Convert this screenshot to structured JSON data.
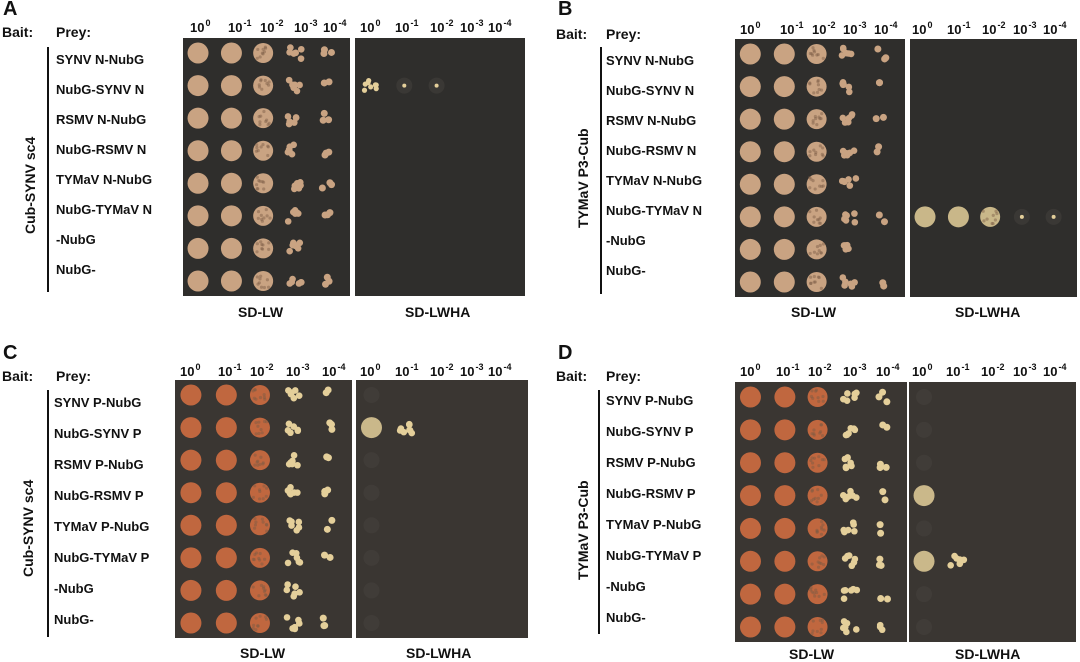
{
  "panels": [
    {
      "letter": "A",
      "bait_label": "Bait:",
      "prey_label": "Prey:",
      "bait": "Cub-SYNV sc4",
      "prey": [
        "SYNV N-NubG",
        "NubG-SYNV N",
        "RSMV N-NubG",
        "NubG-RSMV N",
        "TYMaV N-NubG",
        "NubG-TYMaV N",
        "-NubG",
        "NubG-"
      ],
      "dilutions": [
        {
          "base": "10",
          "exp": "0"
        },
        {
          "base": "10",
          "exp": "-1"
        },
        {
          "base": "10",
          "exp": "-2"
        },
        {
          "base": "10",
          "exp": "-3"
        },
        {
          "base": "10",
          "exp": "-4"
        }
      ],
      "media": [
        "SD-LW",
        "SD-LWHA"
      ]
    },
    {
      "letter": "B",
      "bait_label": "Bait:",
      "prey_label": "Prey:",
      "bait": "TYMaV P3-Cub",
      "prey": [
        "SYNV N-NubG",
        "NubG-SYNV N",
        "RSMV N-NubG",
        "NubG-RSMV N",
        "TYMaV N-NubG",
        "NubG-TYMaV N",
        "-NubG",
        "NubG-"
      ],
      "dilutions": [
        {
          "base": "10",
          "exp": "0"
        },
        {
          "base": "10",
          "exp": "-1"
        },
        {
          "base": "10",
          "exp": "-2"
        },
        {
          "base": "10",
          "exp": "-3"
        },
        {
          "base": "10",
          "exp": "-4"
        }
      ],
      "media": [
        "SD-LW",
        "SD-LWHA"
      ]
    },
    {
      "letter": "C",
      "bait_label": "Bait:",
      "prey_label": "Prey:",
      "bait": "Cub-SYNV sc4",
      "prey": [
        "SYNV P-NubG",
        "NubG-SYNV P",
        "RSMV P-NubG",
        "NubG-RSMV P",
        "TYMaV P-NubG",
        "NubG-TYMaV P",
        "-NubG",
        "NubG-"
      ],
      "dilutions": [
        {
          "base": "10",
          "exp": "0"
        },
        {
          "base": "10",
          "exp": "-1"
        },
        {
          "base": "10",
          "exp": "-2"
        },
        {
          "base": "10",
          "exp": "-3"
        },
        {
          "base": "10",
          "exp": "-4"
        }
      ],
      "media": [
        "SD-LW",
        "SD-LWHA"
      ]
    },
    {
      "letter": "D",
      "bait_label": "Bait:",
      "prey_label": "Prey:",
      "bait": "TYMaV P3-Cub",
      "prey": [
        "SYNV P-NubG",
        "NubG-SYNV P",
        "RSMV P-NubG",
        "NubG-RSMV P",
        "TYMaV P-NubG",
        "NubG-TYMaV P",
        "-NubG",
        "NubG-"
      ],
      "dilutions": [
        {
          "base": "10",
          "exp": "0"
        },
        {
          "base": "10",
          "exp": "-1"
        },
        {
          "base": "10",
          "exp": "-2"
        },
        {
          "base": "10",
          "exp": "-3"
        },
        {
          "base": "10",
          "exp": "-4"
        }
      ],
      "media": [
        "SD-LW",
        "SD-LWHA"
      ]
    }
  ],
  "colors": {
    "plate_a": "#2f2e2c",
    "plate_c": "#3a3632",
    "colony_a": "#c9a382",
    "colony_c": "#c0673f",
    "colony_pale": "#e4cf9a"
  }
}
